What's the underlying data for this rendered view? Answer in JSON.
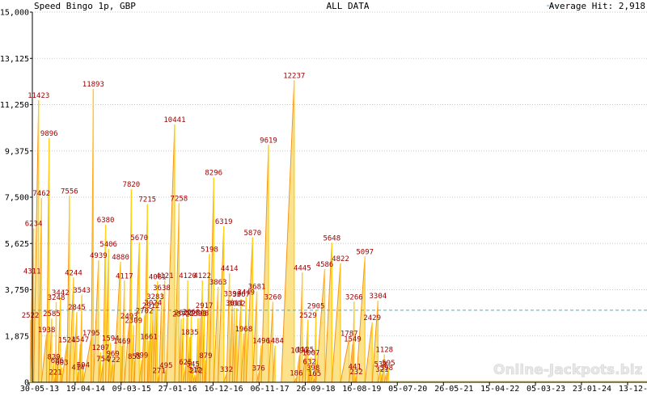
{
  "header": {
    "title_left": "Speed Bingo 1p, GBP",
    "title_center": "ALL DATA",
    "legend_label": "Average Hit: 2,918"
  },
  "watermark": "Online-Jackpots.biz",
  "colors": {
    "fill": "#fce28a",
    "spike": "#f7941d",
    "peak": "#ffd11a",
    "average_line": "#5aa9b8",
    "grid": "#c8c8c8",
    "label": "#a00000"
  },
  "chart_data": {
    "type": "area",
    "title": "Speed Bingo 1p, GBP",
    "subtitle": "ALL DATA",
    "ylim": [
      0,
      15000
    ],
    "y_ticks": [
      "0",
      "1,875",
      "3,750",
      "5,625",
      "7,500",
      "9,375",
      "11,250",
      "13,125",
      "15,000"
    ],
    "y_tick_values": [
      0,
      1875,
      3750,
      5625,
      7500,
      9375,
      11250,
      13125,
      15000
    ],
    "x_ticks": [
      "30-05-13",
      "19-04-14",
      "09-03-15",
      "27-01-16",
      "16-12-16",
      "06-11-17",
      "26-09-18",
      "16-08-19",
      "05-07-20",
      "26-05-21",
      "15-04-22",
      "05-03-23",
      "23-01-24",
      "13-12-24"
    ],
    "average": 2918,
    "legend": {
      "label": "Average Hit: 2,918",
      "placement": "top-right"
    },
    "grid": true,
    "series": [
      {
        "points": [
          {
            "x": "2013-06-08",
            "y": 2522,
            "label": "2522"
          },
          {
            "x": "2013-06-20",
            "y": 4311,
            "label": "4311"
          },
          {
            "x": "2013-07-01",
            "y": 6234,
            "label": "6234"
          },
          {
            "x": "2013-08-05",
            "y": 11423,
            "label": "11423"
          },
          {
            "x": "2013-08-25",
            "y": 7462,
            "label": "7462"
          },
          {
            "x": "2013-09-30",
            "y": 1938,
            "label": "1938"
          },
          {
            "x": "2013-10-18",
            "y": 9896,
            "label": "9896"
          },
          {
            "x": "2013-11-05",
            "y": 2585,
            "label": "2585"
          },
          {
            "x": "2013-11-20",
            "y": 839,
            "label": "839"
          },
          {
            "x": "2013-12-01",
            "y": 221,
            "label": "221"
          },
          {
            "x": "2013-12-07",
            "y": 3248,
            "label": "3248"
          },
          {
            "x": "2013-12-15",
            "y": 686,
            "label": "686"
          },
          {
            "x": "2014-01-06",
            "y": 3442,
            "label": "3442"
          },
          {
            "x": "2014-01-15",
            "y": 603,
            "label": "603"
          },
          {
            "x": "2014-02-20",
            "y": 1524,
            "label": "1524"
          },
          {
            "x": "2014-03-10",
            "y": 7556,
            "label": "7556"
          },
          {
            "x": "2014-04-08",
            "y": 4244,
            "label": "4244"
          },
          {
            "x": "2014-05-01",
            "y": 2845,
            "label": "2845"
          },
          {
            "x": "2014-05-10",
            "y": 414,
            "label": "414"
          },
          {
            "x": "2014-05-25",
            "y": 1547,
            "label": "1547"
          },
          {
            "x": "2014-06-05",
            "y": 3543,
            "label": "3543"
          },
          {
            "x": "2014-06-15",
            "y": 504,
            "label": "504"
          },
          {
            "x": "2014-08-10",
            "y": 1795,
            "label": "1795"
          },
          {
            "x": "2014-08-25",
            "y": 11893,
            "label": "11893"
          },
          {
            "x": "2014-10-01",
            "y": 4939,
            "label": "4939"
          },
          {
            "x": "2014-10-15",
            "y": 1207,
            "label": "1207"
          },
          {
            "x": "2014-11-01",
            "y": 754,
            "label": "754"
          },
          {
            "x": "2014-11-20",
            "y": 6380,
            "label": "6380"
          },
          {
            "x": "2014-12-10",
            "y": 5406,
            "label": "5406"
          },
          {
            "x": "2014-12-25",
            "y": 1594,
            "label": "1594"
          },
          {
            "x": "2015-01-10",
            "y": 969,
            "label": "969"
          },
          {
            "x": "2015-01-15",
            "y": 722,
            "label": "722"
          },
          {
            "x": "2015-03-05",
            "y": 4880,
            "label": "4880"
          },
          {
            "x": "2015-03-15",
            "y": 1469,
            "label": "1469"
          },
          {
            "x": "2015-04-01",
            "y": 4117,
            "label": "4117"
          },
          {
            "x": "2015-05-05",
            "y": 2493,
            "label": "2493"
          },
          {
            "x": "2015-05-20",
            "y": 7820,
            "label": "7820"
          },
          {
            "x": "2015-06-05",
            "y": 2309,
            "label": "2309"
          },
          {
            "x": "2015-06-10",
            "y": 855,
            "label": "855"
          },
          {
            "x": "2015-07-15",
            "y": 5670,
            "label": "5670"
          },
          {
            "x": "2015-08-01",
            "y": 899,
            "label": "899"
          },
          {
            "x": "2015-08-20",
            "y": 2702,
            "label": "2702"
          },
          {
            "x": "2015-09-10",
            "y": 7215,
            "label": "7215"
          },
          {
            "x": "2015-09-20",
            "y": 1661,
            "label": "1661"
          },
          {
            "x": "2015-10-05",
            "y": 2912,
            "label": "2912"
          },
          {
            "x": "2015-10-20",
            "y": 3024,
            "label": "3024"
          },
          {
            "x": "2015-11-05",
            "y": 3283,
            "label": "3283"
          },
          {
            "x": "2015-11-20",
            "y": 4081,
            "label": "4081"
          },
          {
            "x": "2015-12-01",
            "y": 271,
            "label": "271"
          },
          {
            "x": "2015-12-20",
            "y": 3638,
            "label": "3638"
          },
          {
            "x": "2016-01-10",
            "y": 4121,
            "label": "4121"
          },
          {
            "x": "2016-01-20",
            "y": 495,
            "label": "495"
          },
          {
            "x": "2016-03-20",
            "y": 10441,
            "label": "10441"
          },
          {
            "x": "2016-04-20",
            "y": 7258,
            "label": "7258"
          },
          {
            "x": "2016-05-05",
            "y": 2572,
            "label": "2572"
          },
          {
            "x": "2016-05-20",
            "y": 2622,
            "label": "2622"
          },
          {
            "x": "2016-06-05",
            "y": 625,
            "label": "625"
          },
          {
            "x": "2016-06-20",
            "y": 4120,
            "label": "4120"
          },
          {
            "x": "2016-07-05",
            "y": 1835,
            "label": "1835"
          },
          {
            "x": "2016-07-15",
            "y": 2660,
            "label": "2660"
          },
          {
            "x": "2016-07-28",
            "y": 545,
            "label": "545"
          },
          {
            "x": "2016-08-10",
            "y": 312,
            "label": "312"
          },
          {
            "x": "2016-08-20",
            "y": 272,
            "label": "272"
          },
          {
            "x": "2016-09-01",
            "y": 2593,
            "label": "2593"
          },
          {
            "x": "2016-09-15",
            "y": 2608,
            "label": "2608"
          },
          {
            "x": "2016-10-01",
            "y": 4122,
            "label": "4122"
          },
          {
            "x": "2016-10-15",
            "y": 2917,
            "label": "2917"
          },
          {
            "x": "2016-10-25",
            "y": 879,
            "label": "879"
          },
          {
            "x": "2016-11-20",
            "y": 5198,
            "label": "5198"
          },
          {
            "x": "2016-12-20",
            "y": 8296,
            "label": "8296"
          },
          {
            "x": "2017-01-20",
            "y": 3863,
            "label": "3863"
          },
          {
            "x": "2017-03-01",
            "y": 6319,
            "label": "6319"
          },
          {
            "x": "2017-03-20",
            "y": 332,
            "label": "332"
          },
          {
            "x": "2017-04-10",
            "y": 4414,
            "label": "4414"
          },
          {
            "x": "2017-05-01",
            "y": 3396,
            "label": "3396"
          },
          {
            "x": "2017-05-15",
            "y": 3011,
            "label": "3011"
          },
          {
            "x": "2017-06-01",
            "y": 3002,
            "label": "3002"
          },
          {
            "x": "2017-07-01",
            "y": 3367,
            "label": "3367"
          },
          {
            "x": "2017-07-20",
            "y": 1968,
            "label": "1968"
          },
          {
            "x": "2017-08-05",
            "y": 3449,
            "label": "3449"
          },
          {
            "x": "2017-09-20",
            "y": 5870,
            "label": "5870"
          },
          {
            "x": "2017-10-20",
            "y": 3681,
            "label": "3681"
          },
          {
            "x": "2017-11-01",
            "y": 376,
            "label": "376"
          },
          {
            "x": "2017-11-20",
            "y": 1496,
            "label": "1496"
          },
          {
            "x": "2018-01-10",
            "y": 9619,
            "label": "9619"
          },
          {
            "x": "2018-02-10",
            "y": 3260,
            "label": "3260"
          },
          {
            "x": "2018-02-25",
            "y": 1484,
            "label": "1484"
          },
          {
            "x": "2018-07-10",
            "y": 12237,
            "label": "12237"
          },
          {
            "x": "2018-07-25",
            "y": 186,
            "label": "186"
          },
          {
            "x": "2018-08-15",
            "y": 1090,
            "label": "1090"
          },
          {
            "x": "2018-09-05",
            "y": 4445,
            "label": "4445"
          },
          {
            "x": "2018-09-25",
            "y": 1125,
            "label": "1125"
          },
          {
            "x": "2018-10-15",
            "y": 2529,
            "label": "2529"
          },
          {
            "x": "2018-10-25",
            "y": 632,
            "label": "632"
          },
          {
            "x": "2018-11-05",
            "y": 1007,
            "label": "1007"
          },
          {
            "x": "2018-11-20",
            "y": 398,
            "label": "398"
          },
          {
            "x": "2018-12-01",
            "y": 165,
            "label": "165"
          },
          {
            "x": "2018-12-10",
            "y": 2905,
            "label": "2905"
          },
          {
            "x": "2019-02-10",
            "y": 4586,
            "label": "4586"
          },
          {
            "x": "2019-04-01",
            "y": 5648,
            "label": "5648"
          },
          {
            "x": "2019-06-01",
            "y": 4822,
            "label": "4822"
          },
          {
            "x": "2019-08-01",
            "y": 1787,
            "label": "1787"
          },
          {
            "x": "2019-08-25",
            "y": 1549,
            "label": "1549"
          },
          {
            "x": "2019-09-05",
            "y": 3266,
            "label": "3266"
          },
          {
            "x": "2019-09-10",
            "y": 441,
            "label": "441"
          },
          {
            "x": "2019-09-20",
            "y": 232,
            "label": "232"
          },
          {
            "x": "2019-11-20",
            "y": 5097,
            "label": "5097"
          },
          {
            "x": "2020-01-10",
            "y": 2429,
            "label": "2429"
          },
          {
            "x": "2020-02-20",
            "y": 3304,
            "label": "3304"
          },
          {
            "x": "2020-03-10",
            "y": 539,
            "label": "539"
          },
          {
            "x": "2020-03-20",
            "y": 321,
            "label": "321"
          },
          {
            "x": "2020-04-05",
            "y": 1128,
            "label": "1128"
          },
          {
            "x": "2020-04-20",
            "y": 398,
            "label": "398"
          },
          {
            "x": "2020-05-05",
            "y": 595,
            "label": "595"
          }
        ]
      }
    ]
  }
}
